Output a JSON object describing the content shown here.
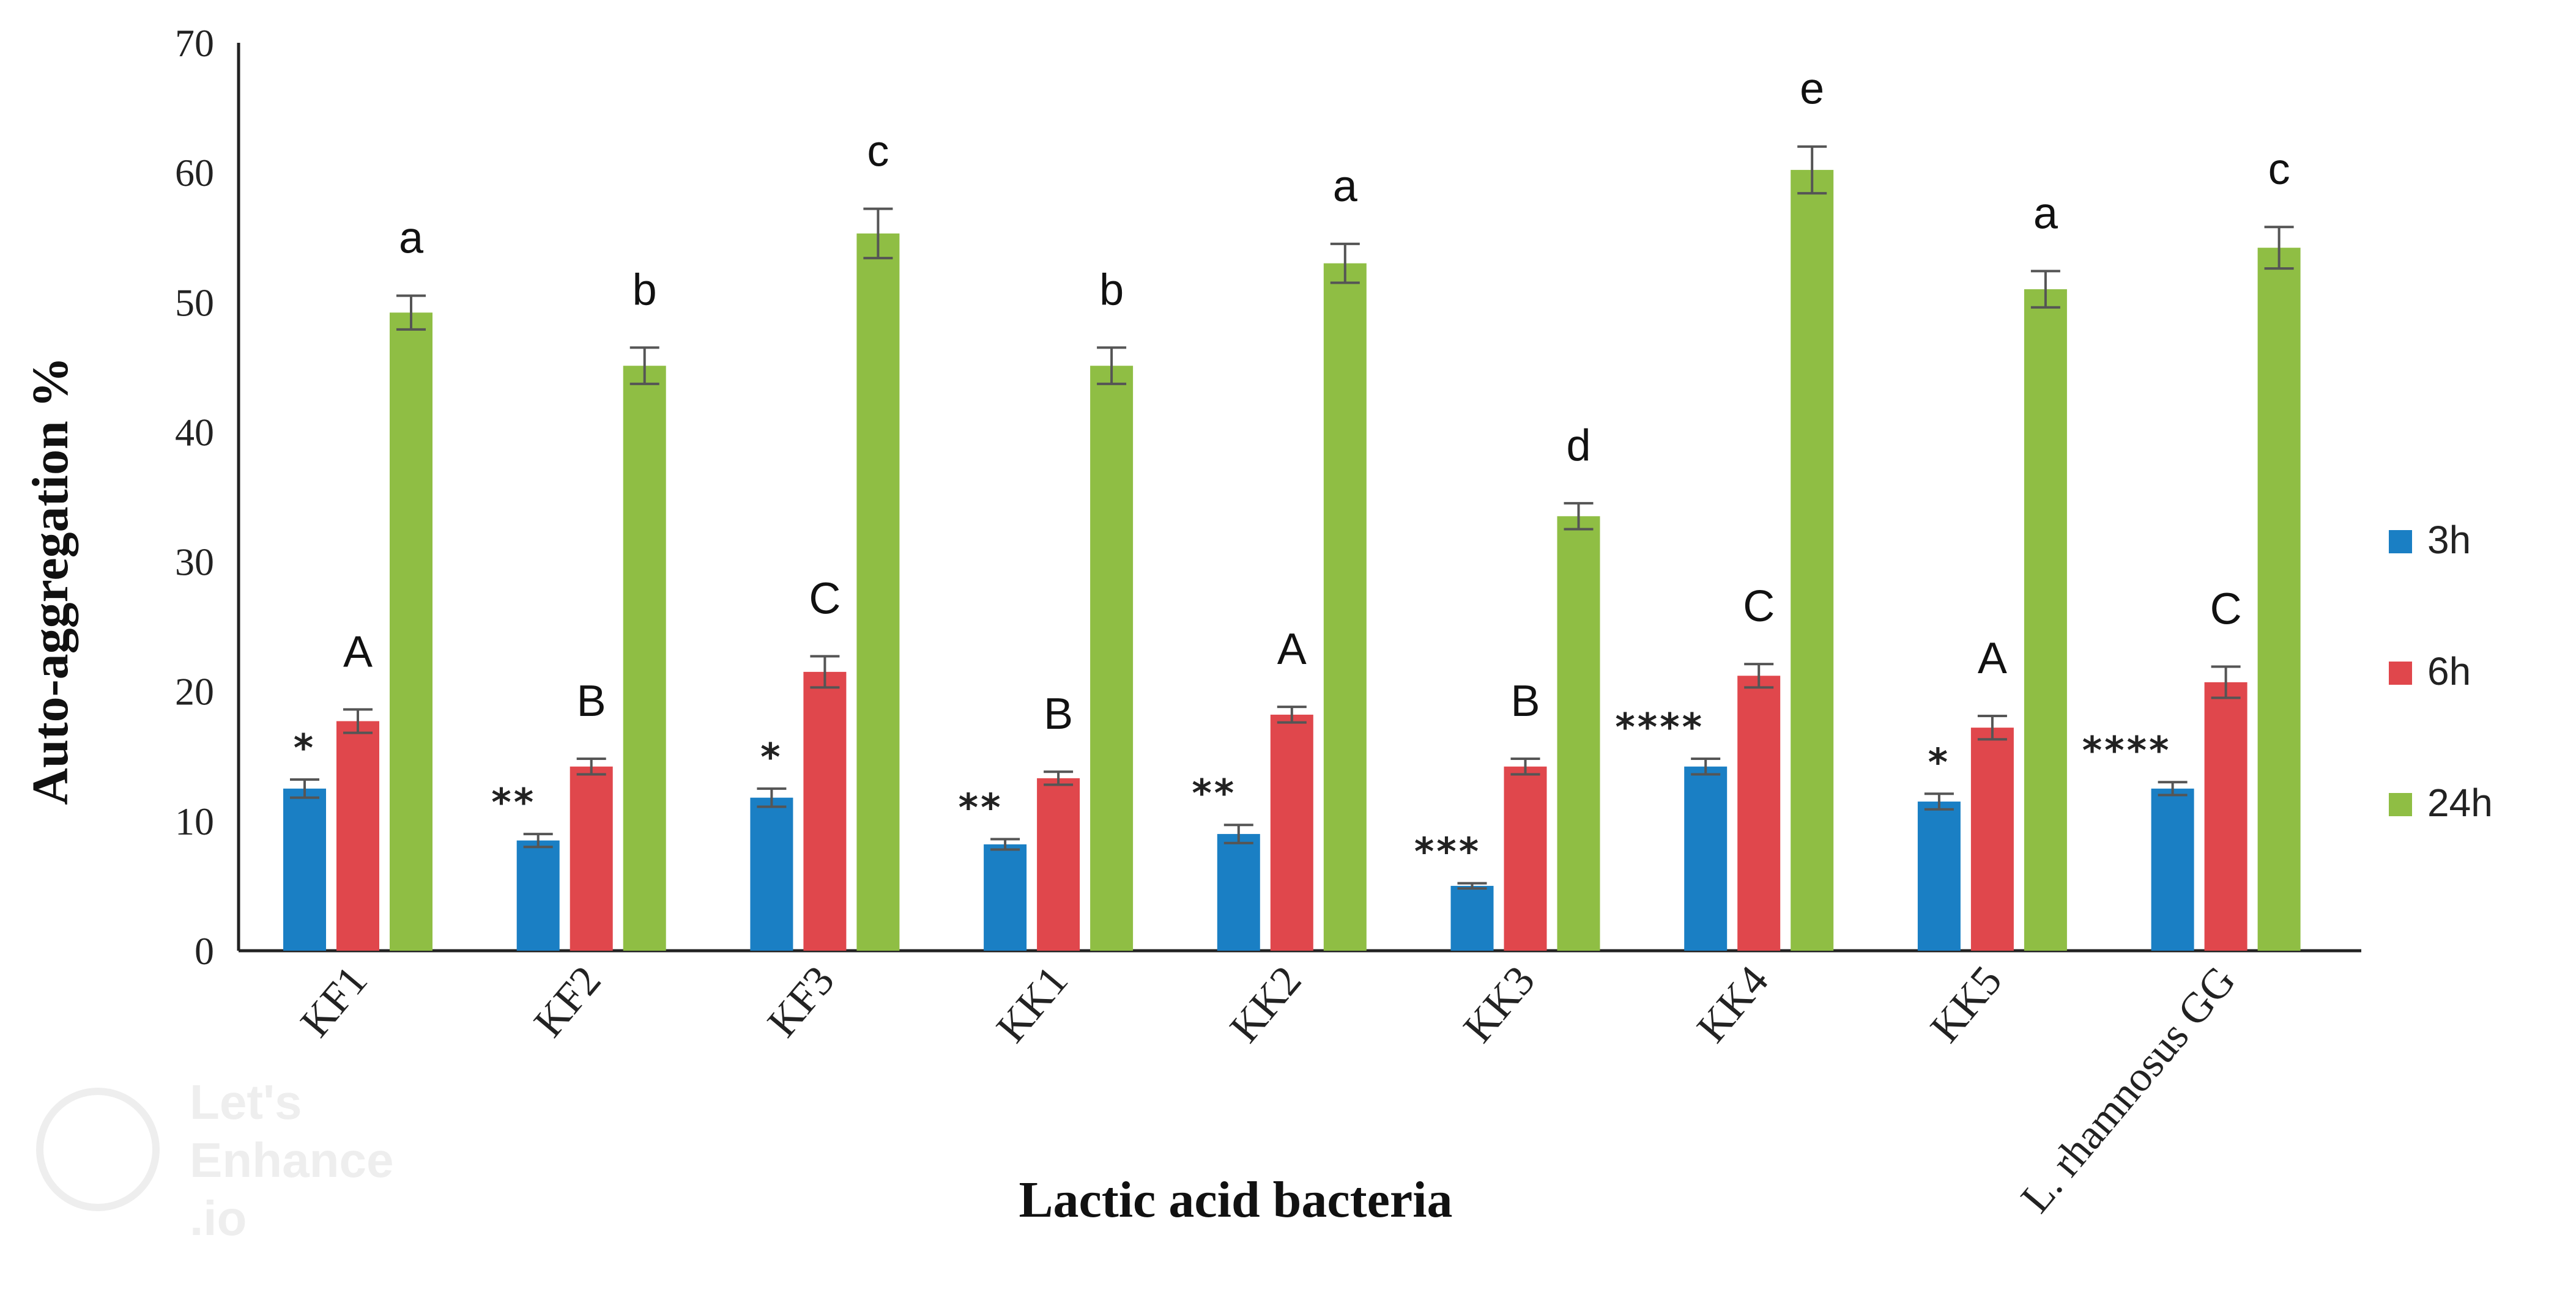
{
  "chart_data": {
    "type": "bar",
    "ylabel": "Auto-aggregation %",
    "xlabel": "Lactic acid bacteria",
    "ylim": [
      0,
      70
    ],
    "yticks": [
      "0",
      "10",
      "20",
      "30",
      "40",
      "50",
      "60",
      "70"
    ],
    "categories": [
      "KF1",
      "KF2",
      "KF3",
      "KK1",
      "KK2",
      "KK3",
      "KK4",
      "KK5",
      "L. rhamnosus GG"
    ],
    "series": [
      {
        "name": "3h",
        "color": "#1a7fc4",
        "values": [
          12.5,
          8.5,
          11.8,
          8.2,
          9.0,
          5.0,
          14.2,
          11.5,
          12.5
        ],
        "errors": [
          0.7,
          0.5,
          0.7,
          0.4,
          0.7,
          0.2,
          0.6,
          0.6,
          0.5
        ]
      },
      {
        "name": "6h",
        "color": "#e0474c",
        "values": [
          17.7,
          14.2,
          21.5,
          13.3,
          18.2,
          14.2,
          21.2,
          17.2,
          20.7
        ],
        "errors": [
          0.9,
          0.6,
          1.2,
          0.5,
          0.6,
          0.6,
          0.9,
          0.9,
          1.2
        ]
      },
      {
        "name": "24h",
        "color": "#8fbe44",
        "values": [
          49.2,
          45.1,
          55.3,
          45.1,
          53.0,
          33.5,
          60.2,
          51.0,
          54.2
        ],
        "errors": [
          1.3,
          1.4,
          1.9,
          1.4,
          1.5,
          1.0,
          1.8,
          1.4,
          1.6
        ]
      }
    ],
    "letters_6h": [
      "A",
      "B",
      "C",
      "B",
      "A",
      "B",
      "C",
      "A",
      "C"
    ],
    "letters_24h": [
      "a",
      "b",
      "c",
      "b",
      "a",
      "d",
      "e",
      "a",
      "c"
    ],
    "significance_3h": [
      "*",
      "**",
      "*",
      "**",
      "**",
      "***",
      "****",
      "*",
      "****"
    ],
    "legend_position": "right",
    "grid": false
  },
  "watermark": {
    "lines": [
      "Let's",
      "Enhance",
      ".io"
    ]
  }
}
